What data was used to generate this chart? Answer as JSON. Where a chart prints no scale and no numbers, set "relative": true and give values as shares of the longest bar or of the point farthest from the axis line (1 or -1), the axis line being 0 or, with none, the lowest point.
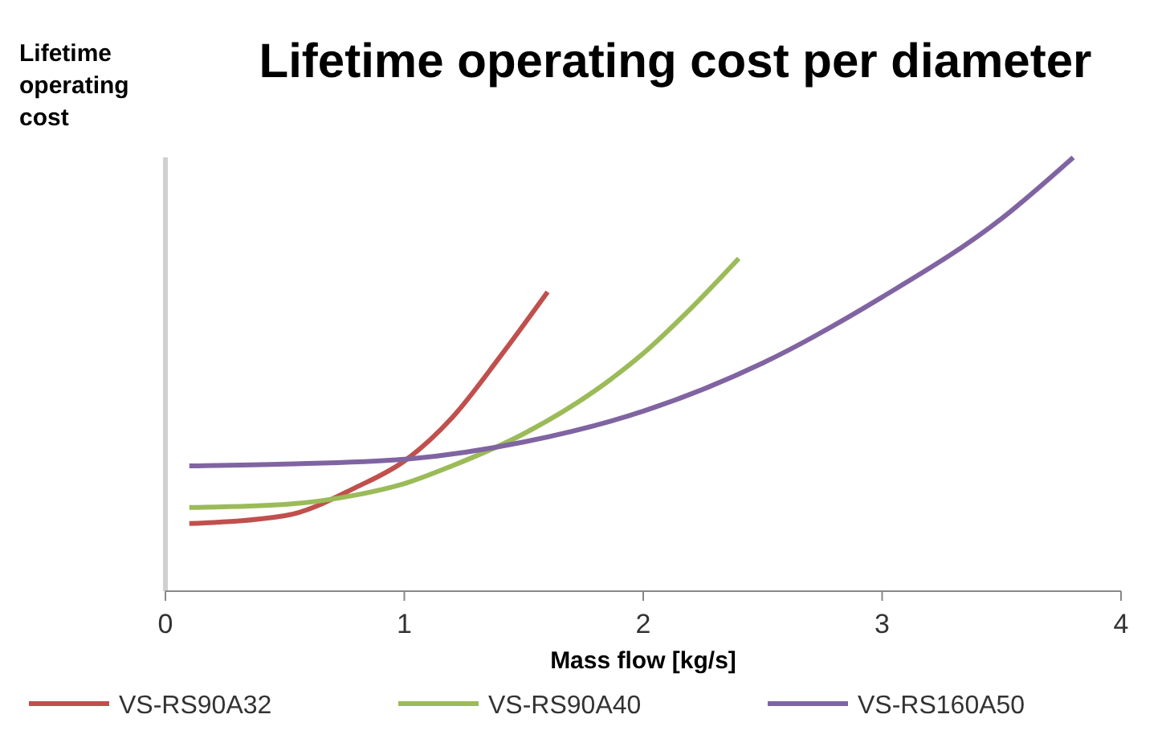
{
  "chart_data": {
    "type": "line",
    "title": "Lifetime operating cost per diameter",
    "xlabel": "Mass flow [kg/s]",
    "ylabel": "Lifetime operating cost",
    "relative": true,
    "xlim": [
      0,
      4
    ],
    "xticks": [
      0,
      1,
      2,
      3,
      4
    ],
    "grid": false,
    "legend": "bottom",
    "marker": "none",
    "line_style": "solid",
    "series": [
      {
        "name": "VS-RS90A32",
        "color": "#c0504d",
        "x": [
          0.1,
          0.5,
          0.8,
          1.0,
          1.2,
          1.4,
          1.6
        ],
        "values": [
          0.156,
          0.174,
          0.24,
          0.3,
          0.4,
          0.54,
          0.69
        ]
      },
      {
        "name": "VS-RS90A40",
        "color": "#9bbb59",
        "x": [
          0.1,
          0.5,
          0.8,
          1.0,
          1.2,
          1.5,
          1.8,
          2.0,
          2.2,
          2.4
        ],
        "values": [
          0.193,
          0.2,
          0.222,
          0.248,
          0.289,
          0.363,
          0.463,
          0.548,
          0.652,
          0.767
        ]
      },
      {
        "name": "VS-RS160A50",
        "color": "#8064a2",
        "x": [
          0.1,
          0.5,
          1.0,
          1.5,
          2.0,
          2.5,
          3.0,
          3.5,
          3.8
        ],
        "values": [
          0.289,
          0.293,
          0.304,
          0.344,
          0.415,
          0.526,
          0.678,
          0.859,
          1.0
        ]
      }
    ]
  }
}
